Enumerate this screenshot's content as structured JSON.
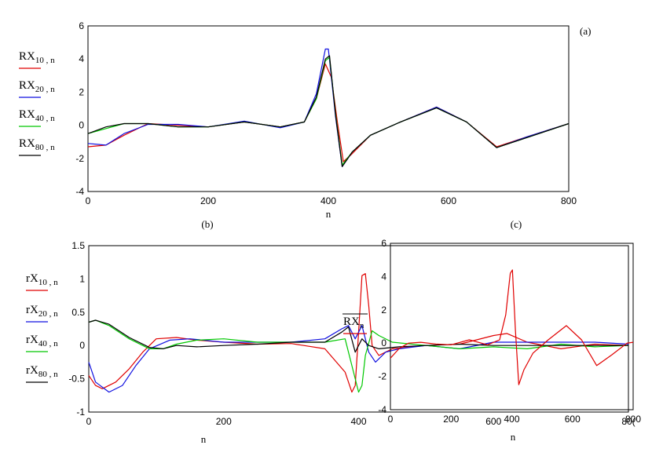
{
  "chart_data": [
    {
      "id": "a",
      "panel_label": "(a)",
      "type": "line",
      "xlabel": "n",
      "xlim": [
        0,
        800
      ],
      "ylim": [
        -4,
        6
      ],
      "xticks": [
        "0",
        "200",
        "400",
        "600",
        "800"
      ],
      "yticks": [
        "-4",
        "-2",
        "0",
        "2",
        "4",
        "6"
      ],
      "series": [
        {
          "name": "RX",
          "sub": "10 , n",
          "color": "#e00000",
          "x": [
            0,
            30,
            60,
            100,
            150,
            200,
            260,
            320,
            360,
            380,
            395,
            405,
            415,
            425,
            440,
            470,
            520,
            580,
            630,
            680,
            730,
            800
          ],
          "y": [
            -1.3,
            -1.2,
            -0.6,
            0.1,
            0.0,
            -0.1,
            0.2,
            -0.1,
            0.2,
            1.6,
            3.7,
            2.9,
            0.2,
            -2.2,
            -1.7,
            -0.6,
            0.2,
            1.1,
            0.2,
            -1.3,
            -0.7,
            0.1
          ]
        },
        {
          "name": "RX",
          "sub": "20 , n",
          "color": "#1010e0",
          "x": [
            0,
            30,
            60,
            100,
            150,
            200,
            260,
            320,
            360,
            380,
            395,
            400,
            412,
            423,
            440,
            470,
            520,
            580,
            630,
            680,
            730,
            800
          ],
          "y": [
            -1.1,
            -1.2,
            -0.5,
            0.05,
            0.05,
            -0.1,
            0.25,
            -0.15,
            0.2,
            1.9,
            4.6,
            4.6,
            0.5,
            -2.5,
            -1.6,
            -0.6,
            0.2,
            1.1,
            0.2,
            -1.35,
            -0.7,
            0.1
          ]
        },
        {
          "name": "RX",
          "sub": "40 , n",
          "color": "#00c800",
          "x": [
            0,
            30,
            60,
            100,
            150,
            200,
            260,
            320,
            360,
            380,
            395,
            402,
            412,
            423,
            440,
            470,
            520,
            580,
            630,
            680,
            730,
            800
          ],
          "y": [
            -0.5,
            -0.2,
            0.1,
            0.1,
            -0.1,
            -0.1,
            0.2,
            -0.1,
            0.2,
            1.6,
            3.9,
            4.1,
            0.7,
            -2.4,
            -1.6,
            -0.6,
            0.2,
            1.05,
            0.2,
            -1.35,
            -0.75,
            0.1
          ]
        },
        {
          "name": "RX",
          "sub": "80 , n",
          "color": "#000000",
          "x": [
            0,
            30,
            60,
            100,
            150,
            200,
            260,
            320,
            360,
            380,
            395,
            402,
            412,
            423,
            440,
            470,
            520,
            580,
            630,
            680,
            730,
            800
          ],
          "y": [
            -0.5,
            -0.1,
            0.1,
            0.1,
            -0.1,
            -0.1,
            0.2,
            -0.1,
            0.2,
            1.7,
            4.0,
            4.2,
            0.6,
            -2.5,
            -1.6,
            -0.6,
            0.2,
            1.05,
            0.2,
            -1.35,
            -0.75,
            0.1
          ]
        }
      ]
    },
    {
      "id": "b",
      "panel_label": "(b)",
      "type": "line",
      "xlabel": "n",
      "xlim": [
        0,
        800
      ],
      "ylim": [
        -1,
        1.5
      ],
      "xticks": [
        "0",
        "200",
        "400",
        "600",
        "80("
      ],
      "yticks": [
        "-1",
        "-0.5",
        "0",
        "0.5",
        "1",
        "1.5"
      ],
      "series": [
        {
          "name": "rX",
          "sub": "10 , n",
          "color": "#e00000",
          "x": [
            0,
            10,
            20,
            40,
            60,
            80,
            100,
            130,
            160,
            200,
            250,
            300,
            350,
            380,
            390,
            395,
            400,
            405,
            410,
            415,
            420,
            430,
            450,
            500,
            550,
            600,
            620,
            650,
            700,
            750,
            800
          ],
          "y": [
            -0.45,
            -0.6,
            -0.65,
            -0.55,
            -0.35,
            -0.1,
            0.1,
            0.12,
            0.08,
            0.05,
            0.02,
            0.03,
            -0.05,
            -0.4,
            -0.7,
            -0.6,
            0.2,
            1.05,
            1.08,
            0.6,
            0.0,
            -0.15,
            -0.05,
            0.0,
            0.02,
            0.15,
            0.18,
            0.05,
            -0.05,
            0.02,
            0.0
          ]
        },
        {
          "name": "rX",
          "sub": "20 , n",
          "color": "#1010e0",
          "x": [
            0,
            10,
            30,
            50,
            70,
            90,
            120,
            150,
            200,
            250,
            300,
            350,
            375,
            385,
            395,
            405,
            415,
            425,
            440,
            460,
            500,
            550,
            600,
            650,
            700,
            750,
            800
          ],
          "y": [
            -0.25,
            -0.55,
            -0.7,
            -0.6,
            -0.3,
            -0.05,
            0.08,
            0.1,
            0.05,
            0.05,
            0.05,
            0.1,
            0.25,
            0.3,
            0.1,
            0.3,
            -0.1,
            -0.25,
            -0.1,
            -0.05,
            0.0,
            -0.05,
            0.05,
            0.05,
            0.05,
            0.05,
            0.02
          ]
        },
        {
          "name": "rX",
          "sub": "40 , n",
          "color": "#00c800",
          "x": [
            0,
            10,
            30,
            60,
            90,
            110,
            130,
            160,
            200,
            250,
            300,
            350,
            380,
            390,
            400,
            405,
            410,
            420,
            430,
            450,
            500,
            550,
            600,
            650,
            700,
            750,
            800
          ],
          "y": [
            0.35,
            0.38,
            0.3,
            0.1,
            -0.05,
            -0.05,
            0.02,
            0.08,
            0.1,
            0.05,
            0.05,
            0.05,
            0.1,
            -0.3,
            -0.7,
            -0.6,
            -0.15,
            0.22,
            0.15,
            0.05,
            0.0,
            -0.05,
            -0.02,
            -0.05,
            0.02,
            -0.02,
            0.0
          ]
        },
        {
          "name": "rX",
          "sub": "80 , n",
          "color": "#000000",
          "x": [
            0,
            10,
            30,
            60,
            90,
            110,
            130,
            160,
            200,
            250,
            300,
            350,
            375,
            385,
            395,
            405,
            415,
            430,
            460,
            500,
            550,
            600,
            650,
            700,
            750,
            800
          ],
          "y": [
            0.35,
            0.38,
            0.32,
            0.12,
            -0.03,
            -0.05,
            0.0,
            -0.02,
            0.0,
            0.02,
            0.05,
            0.05,
            0.2,
            0.28,
            -0.1,
            0.1,
            0.0,
            -0.05,
            -0.02,
            0.0,
            0.02,
            0.0,
            0.0,
            0.0,
            0.0,
            0.0
          ]
        }
      ]
    },
    {
      "id": "c",
      "panel_label": "(c)",
      "type": "line",
      "xlabel": "n",
      "xlim": [
        0,
        800
      ],
      "ylim": [
        -4,
        6
      ],
      "xticks": [
        "0",
        "200",
        "400",
        "600",
        "800"
      ],
      "yticks": [
        "-4",
        "-2",
        "0",
        "2",
        "4",
        "6"
      ],
      "series": [
        {
          "name": "RX",
          "sub": "n",
          "color": "#e00000",
          "x": [
            0,
            30,
            60,
            100,
            150,
            200,
            260,
            320,
            360,
            380,
            395,
            402,
            412,
            423,
            440,
            470,
            520,
            580,
            630,
            680,
            730,
            780,
            800
          ],
          "y": [
            -0.9,
            -0.3,
            0.0,
            0.05,
            -0.05,
            -0.1,
            0.2,
            -0.1,
            0.2,
            1.7,
            4.2,
            4.4,
            0.8,
            -2.5,
            -1.6,
            -0.6,
            0.2,
            1.05,
            0.2,
            -1.35,
            -0.7,
            0.0,
            0.05
          ]
        }
      ]
    }
  ]
}
